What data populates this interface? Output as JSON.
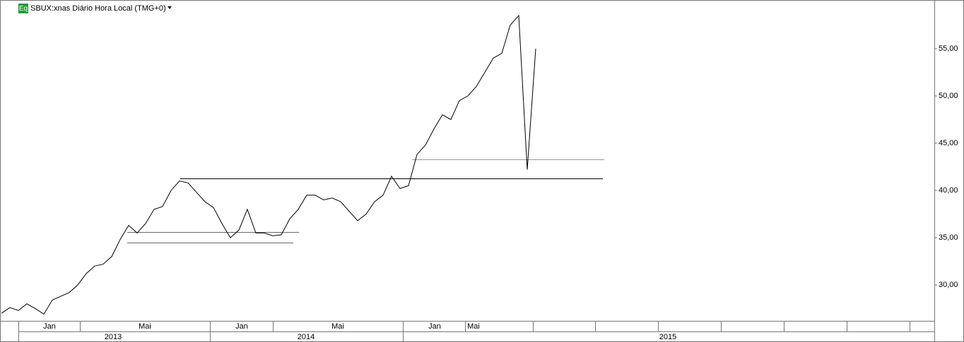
{
  "chart_data": {
    "type": "line",
    "symbol_badge": "Eq",
    "title": "SBUX:xnas Diário Hora Local (TMG+0)",
    "month_labels": [
      "Jan",
      "Mai",
      "Jan",
      "Mai",
      "Jan",
      "Mai"
    ],
    "year_labels": [
      "2013",
      "2014",
      "2015"
    ],
    "series": [
      {
        "name": "SBUX",
        "color": "#000000",
        "values": [
          27.0,
          27.6,
          27.3,
          28.0,
          27.5,
          26.9,
          28.4,
          28.8,
          29.2,
          30.0,
          31.2,
          32.0,
          32.2,
          33.0,
          34.8,
          36.3,
          35.5,
          36.5,
          38.0,
          38.3,
          40.0,
          41.0,
          40.8,
          39.8,
          38.8,
          38.2,
          36.5,
          35.0,
          35.8,
          38.0,
          35.5,
          35.5,
          35.2,
          35.3,
          37.0,
          38.0,
          39.5,
          39.5,
          39.0,
          39.2,
          38.8,
          37.8,
          36.8,
          37.5,
          38.8,
          39.5,
          41.5,
          40.2,
          40.5,
          43.8,
          44.8,
          46.5,
          48.0,
          47.5,
          49.5,
          50.0,
          51.0,
          52.5,
          54.0,
          54.5,
          57.5,
          58.5,
          42.2,
          55.0
        ]
      }
    ],
    "levels": [
      43.3,
      41.3,
      35.6,
      34.5
    ],
    "ylim": [
      26.2,
      60.15
    ],
    "yticks": [
      {
        "value": 30,
        "label": "30,00"
      },
      {
        "value": 35,
        "label": "35,00"
      },
      {
        "value": 40,
        "label": "40,00"
      },
      {
        "value": 45,
        "label": "45,00"
      },
      {
        "value": 50,
        "label": "50,00"
      },
      {
        "value": 55,
        "label": "55,00"
      }
    ]
  }
}
